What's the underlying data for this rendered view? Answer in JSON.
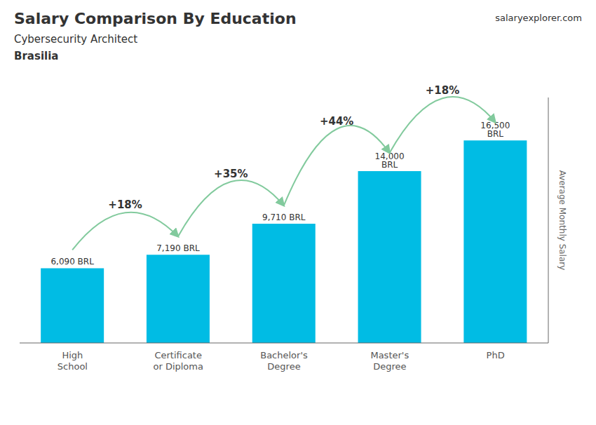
{
  "chart_data": {
    "type": "bar",
    "title": "Salary Comparison By Education",
    "subtitle": "Cybersecurity Architect",
    "ylabel": "Average Monthly Salary",
    "categories": [
      "High\nSchool",
      "Certificate\nor Diploma",
      "Bachelor's\nDegree",
      "Master's\nDegree",
      "PhD"
    ],
    "values": [
      6090,
      7190,
      9710,
      14000,
      16500
    ],
    "value_labels": [
      "6,090 BRL",
      "7,190 BRL",
      "9,710 BRL",
      "14,000 BRL",
      "16,500 BRL"
    ],
    "data_labels": true,
    "color": "#00bce4",
    "ylim": [
      0,
      20000
    ],
    "tick_labels": "x",
    "grid": false,
    "annotations": [
      "Brasilia",
      "salaryexplorer.com",
      {
        "text": "+18%",
        "from": "High\nSchool",
        "to": "Certificate\nor Diploma"
      },
      {
        "text": "+35%",
        "from": "Certificate\nor Diploma",
        "to": "Bachelor's\nDegree"
      },
      {
        "text": "+44%",
        "from": "Bachelor's\nDegree",
        "to": "Master's\nDegree"
      },
      {
        "text": "+18%",
        "from": "Master's\nDegree",
        "to": "PhD"
      }
    ]
  }
}
